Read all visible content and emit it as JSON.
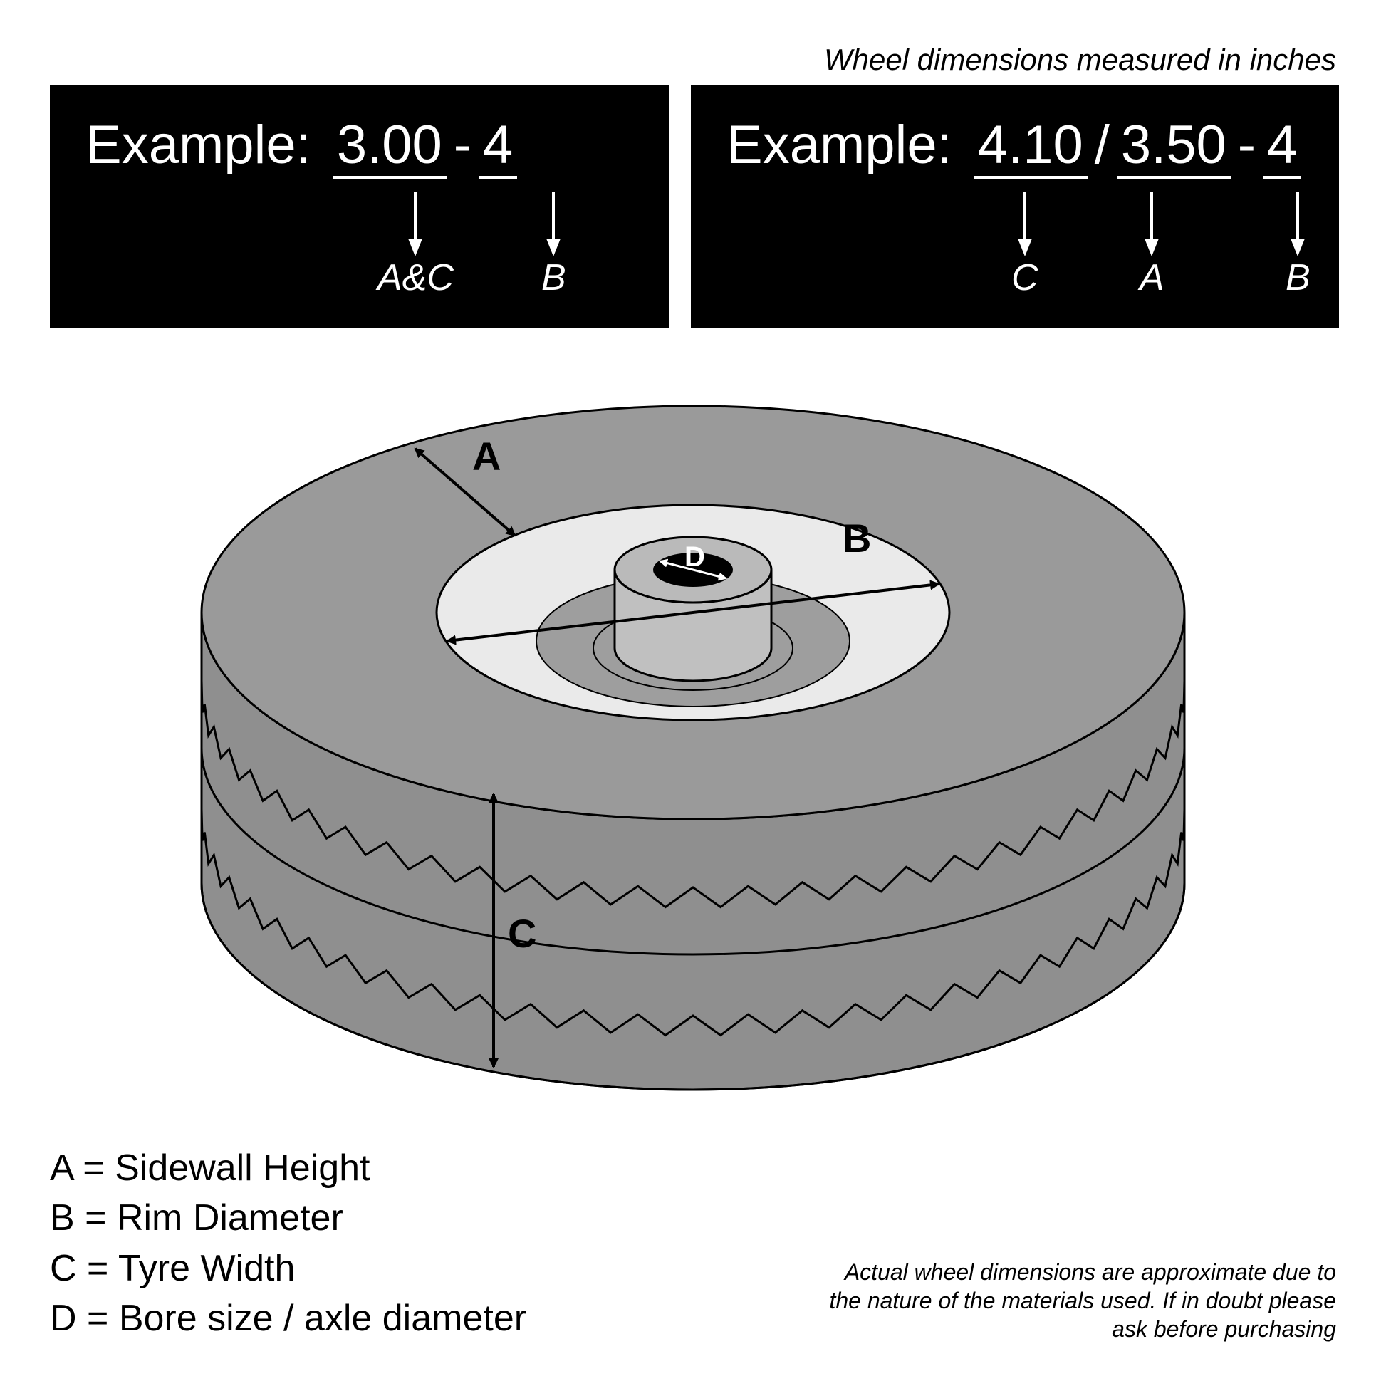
{
  "header_note": "Wheel dimensions measured in inches",
  "example1": {
    "label": "Example:",
    "num1": "3.00",
    "sep1": "-",
    "num2": "4",
    "ptr1_label": "A&C",
    "ptr2_label": "B"
  },
  "example2": {
    "label": "Example:",
    "num1": "4.10",
    "sep1": "/",
    "num2": "3.50",
    "sep2": "-",
    "num3": "4",
    "ptr1_label": "C",
    "ptr2_label": "A",
    "ptr3_label": "B"
  },
  "dims": {
    "A": "A",
    "B": "B",
    "C": "C",
    "D": "D"
  },
  "legend": {
    "A": "A = Sidewall Height",
    "B": "B = Rim Diameter",
    "C": "C = Tyre Width",
    "D": "D = Bore size / axle diameter"
  },
  "disclaimer": "Actual wheel dimensions are approximate due to the nature of the materials used. If in doubt please ask before purchasing",
  "colors": {
    "bg": "#ffffff",
    "box_bg": "#000000",
    "box_fg": "#ffffff",
    "tyre": "#8f8f8f",
    "tyre_mid": "#9a9a9a",
    "rim_face": "#eaeaea",
    "hub_cyl": "#c0c0c0",
    "hub_top": "#bababa",
    "hub_inner": "#9e9e9e",
    "bore": "#000000",
    "stroke": "#000000"
  },
  "style": {
    "header_fontsize": 42,
    "example_fontsize": 76,
    "pointer_fontsize": 52,
    "legend_fontsize": 52,
    "disclaimer_fontsize": 32,
    "dim_letter_fontsize": 56,
    "arrowhead_size": 16,
    "zigzag_amp": 14,
    "zigzag_period": 50,
    "ellipse_ratio": 0.42
  }
}
